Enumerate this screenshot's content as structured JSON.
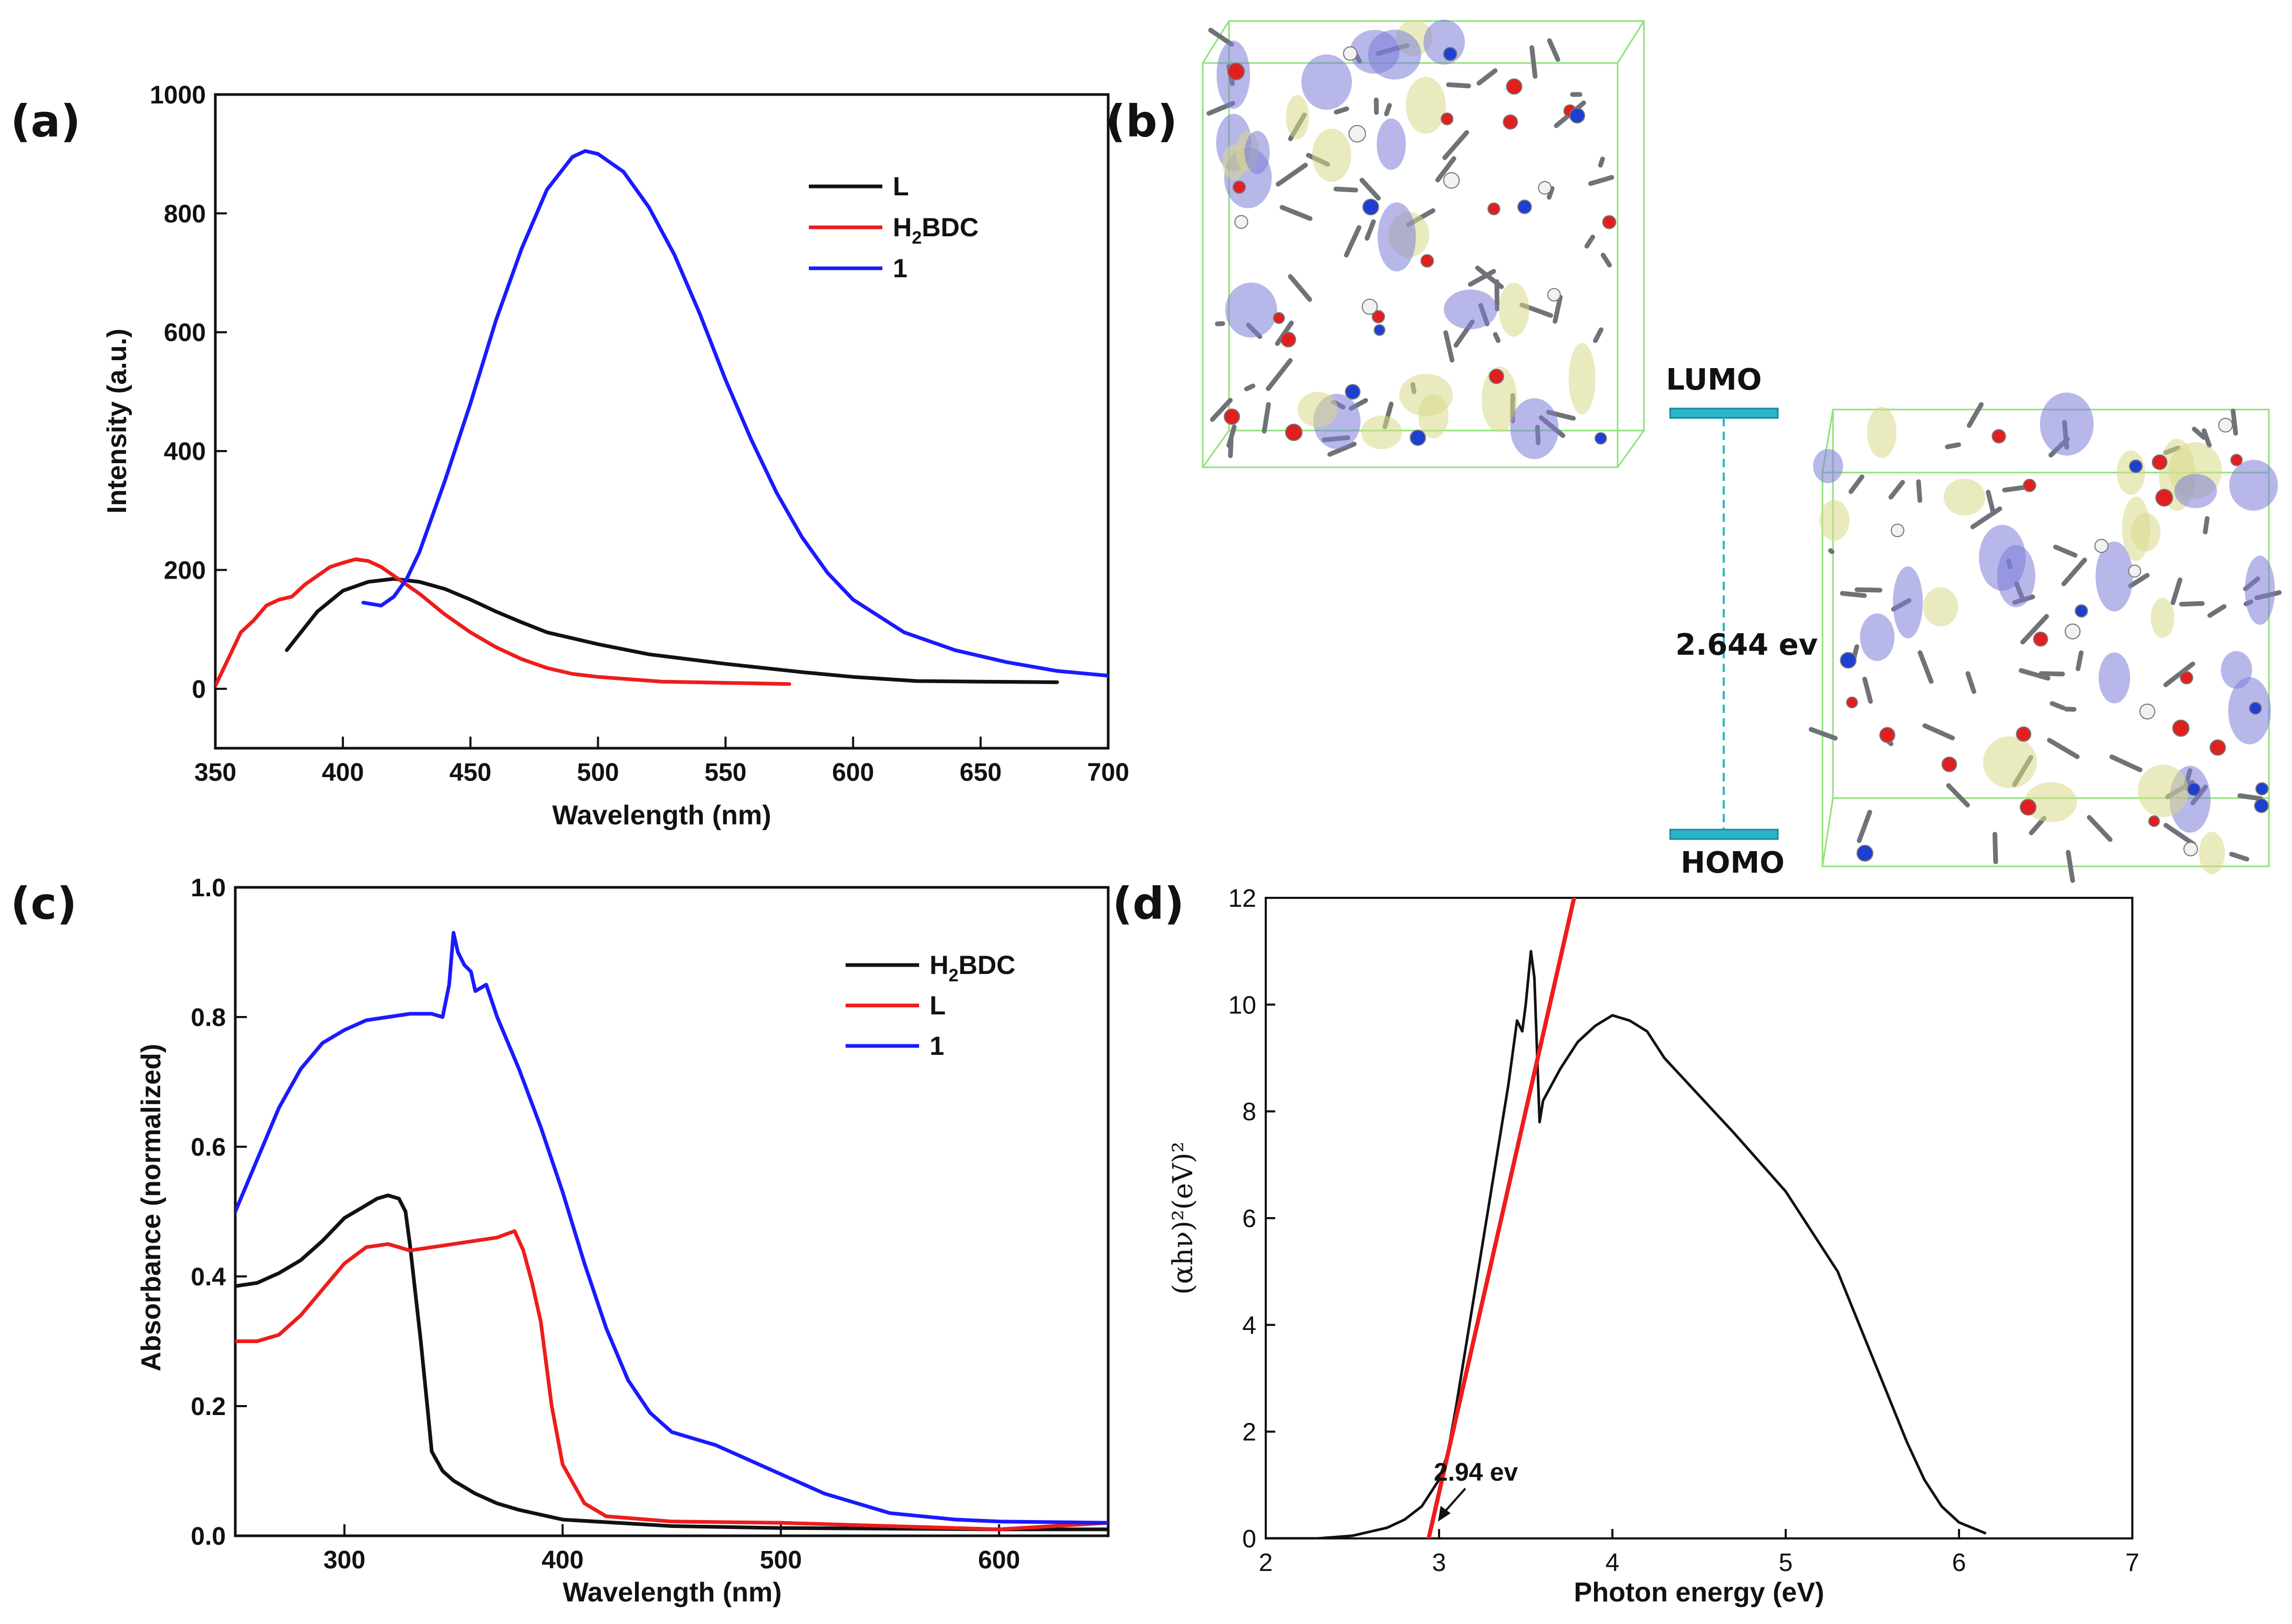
{
  "figure": {
    "panels": [
      "(a)",
      "(b)",
      "(c)",
      "(d)"
    ]
  },
  "colors": {
    "black": "#111111",
    "red": "#ee1c1c",
    "blue": "#1a1aff",
    "cyan": "#29b6c9",
    "box": "#8fe27a"
  },
  "chart_data": [
    {
      "id": "a",
      "type": "line",
      "xlabel": "Wavelength (nm)",
      "ylabel": "Intensity (a.u.)",
      "xlim": [
        350,
        700
      ],
      "ylim": [
        -100,
        1000
      ],
      "xticks": [
        350,
        400,
        450,
        500,
        550,
        600,
        650,
        700
      ],
      "yticks": [
        0,
        200,
        400,
        600,
        800,
        1000
      ],
      "legend_position": "upper-right",
      "series": [
        {
          "name": "L",
          "legend_text": "L",
          "color": "#111111",
          "x": [
            378,
            390,
            400,
            410,
            420,
            430,
            440,
            450,
            460,
            470,
            480,
            500,
            520,
            550,
            580,
            600,
            625,
            650,
            680
          ],
          "y": [
            65,
            130,
            165,
            180,
            185,
            180,
            168,
            150,
            130,
            112,
            95,
            75,
            58,
            42,
            28,
            20,
            13,
            12,
            11
          ]
        },
        {
          "name": "H2BDC",
          "legend_text": "H",
          "legend_sub": "2",
          "legend_suffix": "BDC",
          "color": "#ee1c1c",
          "x": [
            350,
            355,
            360,
            365,
            370,
            375,
            380,
            385,
            390,
            395,
            400,
            405,
            410,
            415,
            420,
            430,
            440,
            450,
            460,
            470,
            480,
            490,
            500,
            525,
            550,
            575
          ],
          "y": [
            5,
            50,
            95,
            115,
            140,
            150,
            155,
            175,
            190,
            205,
            212,
            218,
            215,
            205,
            190,
            160,
            125,
            95,
            70,
            50,
            35,
            25,
            20,
            12,
            10,
            8
          ]
        },
        {
          "name": "1",
          "legend_text": "1",
          "color": "#1a1aff",
          "x": [
            408,
            415,
            420,
            425,
            430,
            440,
            450,
            460,
            470,
            480,
            490,
            495,
            500,
            510,
            520,
            530,
            540,
            550,
            560,
            570,
            580,
            590,
            600,
            620,
            640,
            660,
            680,
            700
          ],
          "y": [
            145,
            140,
            155,
            185,
            230,
            350,
            480,
            620,
            740,
            840,
            895,
            905,
            900,
            870,
            810,
            730,
            630,
            520,
            420,
            330,
            255,
            195,
            150,
            95,
            65,
            45,
            30,
            22
          ]
        }
      ]
    },
    {
      "id": "c",
      "type": "line",
      "xlabel": "Wavelength (nm)",
      "ylabel": "Absorbance (normalized)",
      "xlim": [
        250,
        650
      ],
      "ylim": [
        0,
        1.0
      ],
      "xticks": [
        300,
        400,
        500,
        600
      ],
      "yticks": [
        0.0,
        0.2,
        0.4,
        0.6,
        0.8,
        1.0
      ],
      "ytick_labels": [
        "0.0",
        "0.2",
        "0.4",
        "0.6",
        "0.8",
        "1.0"
      ],
      "legend_position": "upper-right",
      "series": [
        {
          "name": "H2BDC",
          "legend_text": "H",
          "legend_sub": "2",
          "legend_suffix": "BDC",
          "color": "#111111",
          "x": [
            250,
            260,
            270,
            280,
            290,
            300,
            310,
            315,
            320,
            325,
            328,
            330,
            335,
            338,
            340,
            345,
            350,
            360,
            370,
            380,
            400,
            450,
            500,
            550,
            600,
            650
          ],
          "y": [
            0.385,
            0.39,
            0.405,
            0.425,
            0.455,
            0.49,
            0.51,
            0.52,
            0.525,
            0.52,
            0.5,
            0.45,
            0.3,
            0.2,
            0.13,
            0.1,
            0.085,
            0.065,
            0.05,
            0.04,
            0.025,
            0.015,
            0.012,
            0.011,
            0.01,
            0.01
          ]
        },
        {
          "name": "L",
          "legend_text": "L",
          "color": "#ee1c1c",
          "x": [
            250,
            260,
            270,
            280,
            290,
            300,
            310,
            320,
            330,
            340,
            350,
            360,
            370,
            378,
            382,
            386,
            390,
            395,
            400,
            410,
            420,
            450,
            500,
            550,
            600,
            650
          ],
          "y": [
            0.3,
            0.3,
            0.31,
            0.34,
            0.38,
            0.42,
            0.445,
            0.45,
            0.44,
            0.445,
            0.45,
            0.455,
            0.46,
            0.47,
            0.44,
            0.39,
            0.33,
            0.2,
            0.11,
            0.05,
            0.03,
            0.022,
            0.02,
            0.015,
            0.01,
            0.02
          ]
        },
        {
          "name": "1",
          "legend_text": "1",
          "color": "#1a1aff",
          "x": [
            250,
            260,
            270,
            280,
            290,
            300,
            310,
            320,
            330,
            340,
            345,
            348,
            350,
            352,
            355,
            358,
            360,
            365,
            370,
            380,
            390,
            400,
            410,
            420,
            430,
            440,
            450,
            460,
            470,
            480,
            500,
            520,
            550,
            580,
            600,
            650
          ],
          "y": [
            0.5,
            0.58,
            0.66,
            0.72,
            0.76,
            0.78,
            0.795,
            0.8,
            0.805,
            0.805,
            0.8,
            0.85,
            0.93,
            0.9,
            0.88,
            0.87,
            0.84,
            0.85,
            0.8,
            0.72,
            0.63,
            0.53,
            0.42,
            0.32,
            0.24,
            0.19,
            0.16,
            0.15,
            0.14,
            0.125,
            0.095,
            0.065,
            0.035,
            0.025,
            0.022,
            0.02
          ]
        }
      ]
    },
    {
      "id": "d",
      "type": "line",
      "xlabel": "Photon energy (eV)",
      "ylabel": "(αhν)²(eV)²",
      "xlim": [
        2,
        7
      ],
      "ylim": [
        0,
        12
      ],
      "xticks": [
        2,
        3,
        4,
        5,
        6,
        7
      ],
      "yticks": [
        0,
        2,
        4,
        6,
        8,
        10,
        12
      ],
      "annotation": "2.94 ev",
      "series": [
        {
          "name": "Tauc",
          "color": "#111111",
          "x": [
            2.0,
            2.3,
            2.5,
            2.7,
            2.8,
            2.9,
            3.0,
            3.05,
            3.1,
            3.2,
            3.3,
            3.4,
            3.45,
            3.48,
            3.5,
            3.53,
            3.55,
            3.58,
            3.6,
            3.7,
            3.8,
            3.9,
            4.0,
            4.1,
            4.2,
            4.3,
            4.5,
            4.7,
            5.0,
            5.3,
            5.5,
            5.7,
            5.8,
            5.9,
            6.0,
            6.15
          ],
          "y": [
            0,
            0,
            0.05,
            0.2,
            0.35,
            0.6,
            1.1,
            1.6,
            2.5,
            4.5,
            6.5,
            8.5,
            9.7,
            9.5,
            10.0,
            11.0,
            10.5,
            7.8,
            8.2,
            8.8,
            9.3,
            9.6,
            9.8,
            9.7,
            9.5,
            9.0,
            8.3,
            7.6,
            6.5,
            5.0,
            3.4,
            1.8,
            1.1,
            0.6,
            0.3,
            0.1
          ]
        },
        {
          "name": "Fit",
          "color": "#ee1c1c",
          "x": [
            2.94,
            3.8
          ],
          "y": [
            0,
            12.3
          ]
        }
      ]
    }
  ],
  "panel_b": {
    "lumo_label": "LUMO",
    "homo_label": "HOMO",
    "gap_label": "2.644 ev"
  }
}
